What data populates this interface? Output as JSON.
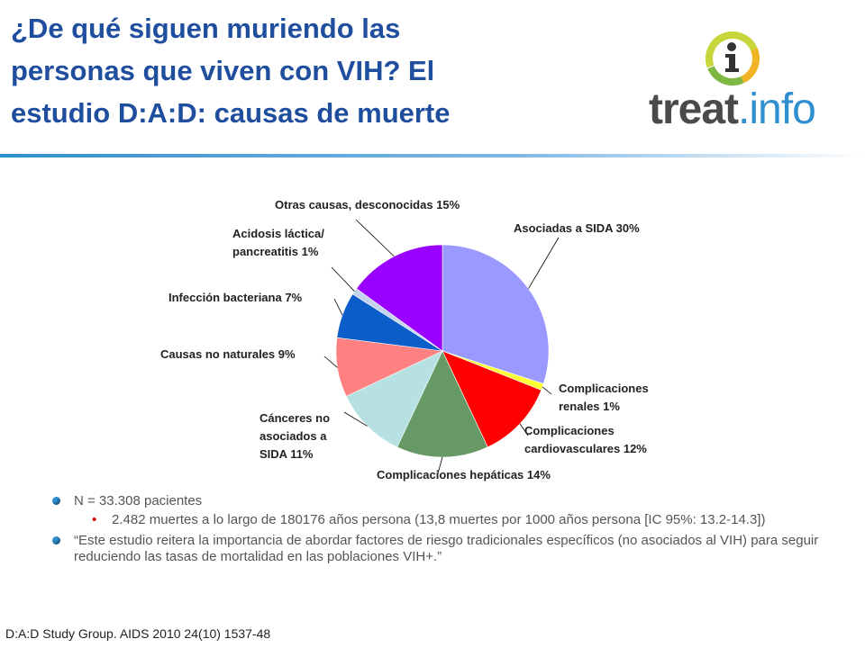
{
  "title": {
    "line1": "¿De qué siguen muriendo las",
    "line2": "personas que viven con  VIH? El",
    "line3": "estudio D:A:D: causas de muerte"
  },
  "logo": {
    "text_bold": "treat",
    "text_light": ".info",
    "icon": "info-i-icon"
  },
  "colors": {
    "title": "#1f4e9e",
    "accent": "#2f8fd0"
  },
  "chart_data": {
    "type": "pie",
    "slices": [
      {
        "value": 30,
        "color": "#9999ff",
        "label": [
          "Asociadas a SIDA 30%"
        ]
      },
      {
        "value": 1,
        "color": "#ffff33",
        "label": [
          "Complicaciones",
          "renales 1%"
        ]
      },
      {
        "value": 12,
        "color": "#ff0000",
        "label": [
          "Complicaciones",
          "cardiovasculares 12%"
        ]
      },
      {
        "value": 14,
        "color": "#669966",
        "label": [
          "Complicaciones hepáticas 14%"
        ]
      },
      {
        "value": 11,
        "color": "#b7e0e3",
        "label": [
          "Cánceres no",
          "asociados a",
          "SIDA 11%"
        ]
      },
      {
        "value": 9,
        "color": "#ff8080",
        "label": [
          "Causas no naturales 9%"
        ]
      },
      {
        "value": 7,
        "color": "#0b5ec9",
        "label": [
          "Infección bacteriana 7%"
        ]
      },
      {
        "value": 1,
        "color": "#c3d3ee",
        "label": [
          "Acidosis láctica/",
          "pancreatitis 1%"
        ]
      },
      {
        "value": 15,
        "color": "#9900ff",
        "label": [
          "Otras causas, desconocidas 15%"
        ]
      }
    ]
  },
  "bullets": {
    "item1": "N = 33.308 pacientes",
    "sub1": "2.482 muertes a lo largo de 180176 años persona (13,8 muertes por 1000 años persona [IC 95%: 13.2-14.3])",
    "item2": "“Este estudio reitera la importancia de abordar factores de riesgo tradicionales específicos (no asociados al VIH) para seguir reduciendo las tasas de mortalidad en las poblaciones VIH+.”"
  },
  "footer": "D:A:D Study Group.  AIDS 2010 24(10) 1537-48"
}
